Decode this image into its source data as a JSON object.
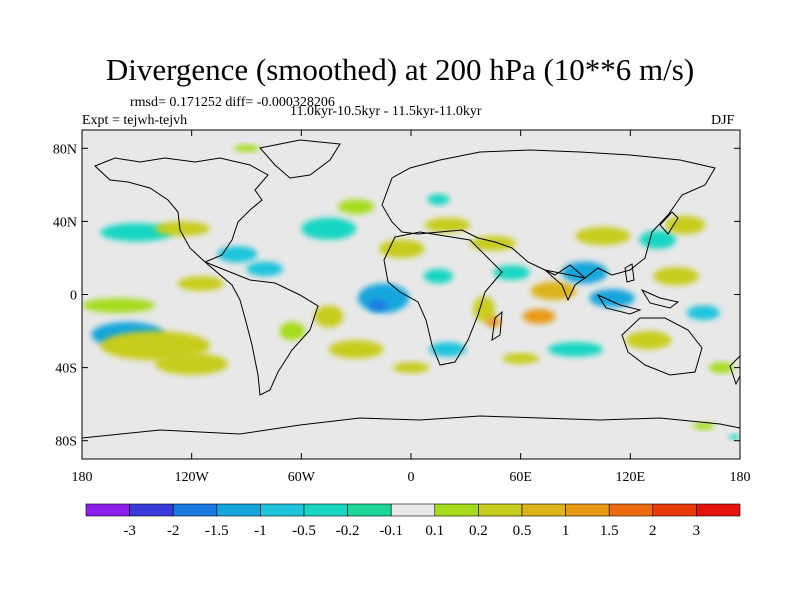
{
  "chart_data": {
    "type": "heatmap",
    "title": "Divergence (smoothed) at 200 hPa (10**6 m/s)",
    "stats": "rmsd= 0.171252 diff= -0.000328206",
    "period": "11.0kyr-10.5kyr - 11.5kyr-11.0kyr",
    "experiment": "Expt = tejwh-tejvh",
    "season": "DJF",
    "x_axis": {
      "range": [
        -180,
        180
      ],
      "ticks": [
        -180,
        -120,
        -60,
        0,
        60,
        120,
        180
      ],
      "tick_labels": [
        "180",
        "120W",
        "60W",
        "0",
        "60E",
        "120E",
        "180"
      ]
    },
    "y_axis": {
      "range": [
        -90,
        90
      ],
      "ticks": [
        80,
        40,
        0,
        -40,
        -80
      ],
      "tick_labels": [
        "80N",
        "40N",
        "0",
        "40S",
        "80S"
      ]
    },
    "colorbar": {
      "labels": [
        "-3",
        "-2",
        "-1.5",
        "-1",
        "-0.5",
        "-0.2",
        "-0.1",
        "0.1",
        "0.2",
        "0.5",
        "1",
        "1.5",
        "2",
        "3"
      ],
      "colors": [
        "#8c1eea",
        "#3a3ad8",
        "#1b7ae0",
        "#17a6dc",
        "#1ec4dc",
        "#19d6c2",
        "#1ed698",
        "#e8e8e8",
        "#a6dc1e",
        "#c8cc1c",
        "#dcb41a",
        "#e89a14",
        "#ec6a10",
        "#ea3a0c",
        "#e4120e"
      ]
    },
    "background_color": "#e8e8e8",
    "regions": [
      {
        "name": "pac-s-cyan",
        "lon": -155,
        "lat": -22,
        "w": 40,
        "h": 14,
        "level": 3
      },
      {
        "name": "pac-s-olive",
        "lon": -140,
        "lat": -28,
        "w": 60,
        "h": 16,
        "level": 9
      },
      {
        "name": "pac-s-olive2",
        "lon": -120,
        "lat": -38,
        "w": 40,
        "h": 12,
        "level": 9
      },
      {
        "name": "pac-eq-green",
        "lon": -160,
        "lat": -6,
        "w": 40,
        "h": 8,
        "level": 8
      },
      {
        "name": "pac-n-cyan",
        "lon": -150,
        "lat": 34,
        "w": 40,
        "h": 10,
        "level": 5
      },
      {
        "name": "pac-n-olive",
        "lon": -125,
        "lat": 36,
        "w": 30,
        "h": 8,
        "level": 9
      },
      {
        "name": "pac-eq-olive",
        "lon": -115,
        "lat": 6,
        "w": 25,
        "h": 8,
        "level": 9
      },
      {
        "name": "mex-cyan",
        "lon": -95,
        "lat": 22,
        "w": 22,
        "h": 9,
        "level": 4
      },
      {
        "name": "carib-cyan",
        "lon": -80,
        "lat": 14,
        "w": 20,
        "h": 8,
        "level": 4
      },
      {
        "name": "atl-n-cyan",
        "lon": -45,
        "lat": 36,
        "w": 30,
        "h": 12,
        "level": 5
      },
      {
        "name": "atl-n-green",
        "lon": -30,
        "lat": 48,
        "w": 20,
        "h": 8,
        "level": 8
      },
      {
        "name": "atl-eq-blue",
        "lon": -15,
        "lat": -2,
        "w": 28,
        "h": 16,
        "level": 3
      },
      {
        "name": "atl-eq-blue2",
        "lon": -18,
        "lat": -6,
        "w": 10,
        "h": 6,
        "level": 2
      },
      {
        "name": "brazil-olive",
        "lon": -45,
        "lat": -12,
        "w": 16,
        "h": 12,
        "level": 9
      },
      {
        "name": "samer-green",
        "lon": -65,
        "lat": -20,
        "w": 14,
        "h": 10,
        "level": 8
      },
      {
        "name": "satl-olive",
        "lon": -30,
        "lat": -30,
        "w": 30,
        "h": 10,
        "level": 9
      },
      {
        "name": "satl-olive2",
        "lon": 0,
        "lat": -40,
        "w": 20,
        "h": 6,
        "level": 9
      },
      {
        "name": "n-africa-olive",
        "lon": -5,
        "lat": 25,
        "w": 25,
        "h": 10,
        "level": 9
      },
      {
        "name": "med-olive",
        "lon": 20,
        "lat": 38,
        "w": 25,
        "h": 8,
        "level": 9
      },
      {
        "name": "w-africa-cyan",
        "lon": 15,
        "lat": 10,
        "w": 16,
        "h": 8,
        "level": 5
      },
      {
        "name": "e-africa-olive",
        "lon": 40,
        "lat": -8,
        "w": 12,
        "h": 14,
        "level": 9
      },
      {
        "name": "madag-orange",
        "lon": 45,
        "lat": -15,
        "w": 8,
        "h": 6,
        "level": 11
      },
      {
        "name": "s-africa-cyan",
        "lon": 20,
        "lat": -30,
        "w": 20,
        "h": 8,
        "level": 4
      },
      {
        "name": "mideast-olive",
        "lon": 45,
        "lat": 28,
        "w": 25,
        "h": 8,
        "level": 9
      },
      {
        "name": "arabia-cyan",
        "lon": 55,
        "lat": 12,
        "w": 20,
        "h": 8,
        "level": 5
      },
      {
        "name": "india-orange",
        "lon": 78,
        "lat": 2,
        "w": 25,
        "h": 10,
        "level": 10
      },
      {
        "name": "india-orange2",
        "lon": 70,
        "lat": -12,
        "w": 18,
        "h": 8,
        "level": 11
      },
      {
        "name": "bengal-blue",
        "lon": 95,
        "lat": 12,
        "w": 25,
        "h": 12,
        "level": 3
      },
      {
        "name": "indo-blue",
        "lon": 110,
        "lat": -2,
        "w": 25,
        "h": 10,
        "level": 3
      },
      {
        "name": "china-olive",
        "lon": 105,
        "lat": 32,
        "w": 30,
        "h": 10,
        "level": 9
      },
      {
        "name": "japan-cyan",
        "lon": 135,
        "lat": 30,
        "w": 20,
        "h": 10,
        "level": 5
      },
      {
        "name": "nwpac-olive",
        "lon": 150,
        "lat": 38,
        "w": 22,
        "h": 10,
        "level": 9
      },
      {
        "name": "wpac-olive",
        "lon": 145,
        "lat": 10,
        "w": 25,
        "h": 10,
        "level": 9
      },
      {
        "name": "austr-olive",
        "lon": 130,
        "lat": -25,
        "w": 25,
        "h": 10,
        "level": 9
      },
      {
        "name": "sio-cyan",
        "lon": 90,
        "lat": -30,
        "w": 30,
        "h": 8,
        "level": 5
      },
      {
        "name": "sio-olive",
        "lon": 60,
        "lat": -35,
        "w": 20,
        "h": 6,
        "level": 9
      },
      {
        "name": "swpac-cyan",
        "lon": 160,
        "lat": -10,
        "w": 18,
        "h": 8,
        "level": 4
      },
      {
        "name": "swpac-green",
        "lon": 170,
        "lat": -40,
        "w": 14,
        "h": 6,
        "level": 8
      },
      {
        "name": "europe-cyan",
        "lon": 15,
        "lat": 52,
        "w": 12,
        "h": 6,
        "level": 5
      },
      {
        "name": "arctic-green",
        "lon": -90,
        "lat": 80,
        "w": 14,
        "h": 4,
        "level": 8
      },
      {
        "name": "antarctic-green",
        "lon": 160,
        "lat": -72,
        "w": 12,
        "h": 4,
        "level": 8
      },
      {
        "name": "antarctic-cyan",
        "lon": 177,
        "lat": -78,
        "w": 6,
        "h": 3,
        "level": 5
      }
    ]
  }
}
